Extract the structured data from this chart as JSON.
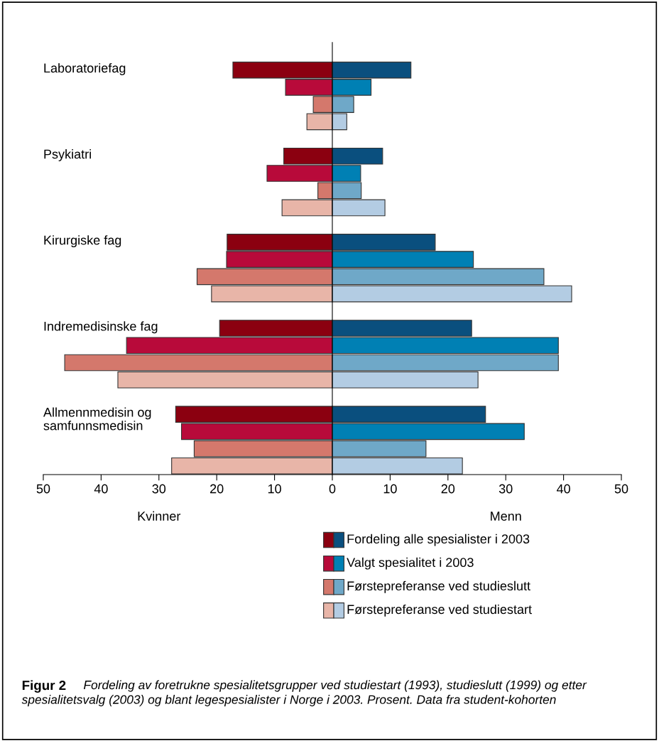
{
  "chart_data": {
    "type": "bar",
    "orientation": "horizontal",
    "stacked": true,
    "title": "Figur 2",
    "subtitle": "Fordeling av foretrukne spesialitetsgrupper ved studiestart (1993), studieslutt (1999) og etter spesialitetsvalg (2003) og blant legespesialister i Norge i 2003. Prosent. Data fra student-kohorten",
    "categories": [
      "Laboratoriefag",
      null,
      null,
      null,
      null,
      "Psykiatri",
      null,
      null,
      null,
      null,
      "Kirurgiske fag",
      null,
      null,
      null,
      null,
      "Indremedisinske fag",
      null,
      null,
      null,
      null,
      "Allmennmedisin og\nsamfunnsmedisin",
      null,
      null,
      null
    ],
    "series": [
      {
        "colors": [
          "#8b0010",
          "#b80a3a",
          "#d4786c",
          "#e8b5a8",
          "#ffffff",
          "#8b0010",
          "#b80a3a",
          "#d4786c",
          "#e8b5a8",
          "#ffffff",
          "#8b0010",
          "#b80a3a",
          "#d4786c",
          "#e8b5a8",
          "#ffffff",
          "#8b0010",
          "#b80a3a",
          "#d4786c",
          "#e8b5a8",
          "#ffffff",
          "#8b0010",
          "#b80a3a",
          "#d4786c",
          "#e8b5a8"
        ],
        "values": [
          -17.2,
          -8.1,
          -3.3,
          -4.4,
          null,
          -8.4,
          -11.3,
          -2.5,
          -8.7,
          null,
          -18.2,
          -18.3,
          -23.4,
          -20.9,
          null,
          -19.5,
          -35.6,
          -46.3,
          -37.1,
          null,
          -27.1,
          -26.1,
          -23.9,
          -27.8
        ]
      },
      {
        "colors": [
          "#0a4f7e",
          "#0080b4",
          "#6fa8c8",
          "#b3cce3",
          "#ffffff",
          "#0a4f7e",
          "#0080b4",
          "#6fa8c8",
          "#b3cce3",
          "#ffffff",
          "#0a4f7e",
          "#0080b4",
          "#6fa8c8",
          "#b3cce3",
          "#ffffff",
          "#0a4f7e",
          "#0080b4",
          "#6fa8c8",
          "#b3cce3",
          "#ffffff",
          "#0a4f7e",
          "#0080b4",
          "#6fa8c8",
          "#b3cce3"
        ],
        "values": [
          13.6,
          6.7,
          3.7,
          2.5,
          null,
          8.7,
          4.9,
          5.0,
          9.1,
          null,
          17.8,
          24.4,
          36.6,
          41.4,
          null,
          24.1,
          39.1,
          39.1,
          25.2,
          null,
          26.5,
          33.2,
          16.2,
          22.5
        ]
      }
    ],
    "xlim": [
      -50,
      50
    ],
    "xticks": [
      {
        "value": -50,
        "label": "50"
      },
      {
        "value": -40,
        "label": "40"
      },
      {
        "value": -30,
        "label": "30"
      },
      {
        "value": -20,
        "label": "20"
      },
      {
        "value": -10,
        "label": "10"
      },
      0,
      10,
      20,
      30,
      40,
      50
    ],
    "annotations": [
      "Fordeling alle spesialister i 2003",
      "Valgt spesialitet i 2003",
      "Førstepreferanse ved studieslutt",
      "Førstepreferanse ved studiestart",
      "Kvinner",
      "Menn"
    ]
  }
}
